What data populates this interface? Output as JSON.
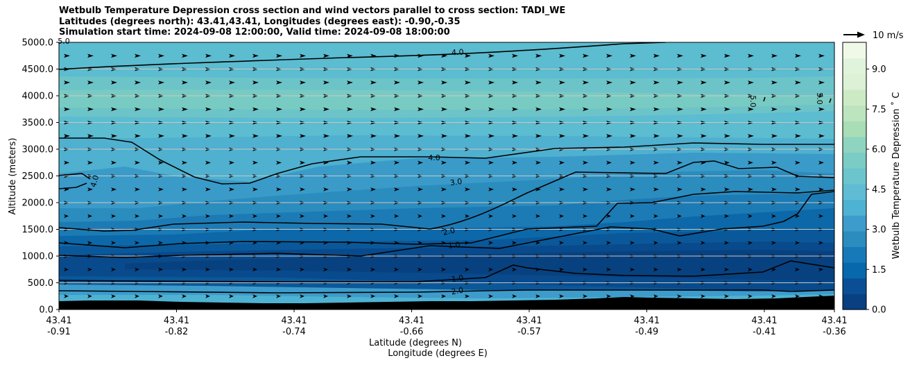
{
  "chart_data": {
    "type": "heatmap",
    "title": [
      "Wetbulb Temperature Depression cross section and wind vectors parallel to cross section: TADI_WE",
      "Latitudes (degrees north): 43.41,43.41, Longitudes (degrees east): -0.90,-0.35",
      "Simulation start time: 2024-09-08 12:00:00, Valid time: 2024-09-08 18:00:00"
    ],
    "ylabel": "Altitude (meters)",
    "xlabel_lat": "Latitude (degrees N)",
    "xlabel_lon": "Longitude (degrees E)",
    "ylim": [
      0,
      5000
    ],
    "y_ticks": [
      "0.0",
      "500.0",
      "1000.0",
      "1500.0",
      "2000.0",
      "2500.0",
      "3000.0",
      "3500.0",
      "4000.0",
      "4500.0",
      "5000.0"
    ],
    "x_ticks": [
      {
        "lat": "43.41",
        "lon": "-0.91"
      },
      {
        "lat": "43.41",
        "lon": "-0.82"
      },
      {
        "lat": "43.41",
        "lon": "-0.74"
      },
      {
        "lat": "43.41",
        "lon": "-0.66"
      },
      {
        "lat": "43.41",
        "lon": "-0.57"
      },
      {
        "lat": "43.41",
        "lon": "-0.49"
      },
      {
        "lat": "43.41",
        "lon": "-0.41"
      },
      {
        "lat": "43.41",
        "lon": "-0.36"
      }
    ],
    "colorbar": {
      "label": "Wetbulb Temperature Depression ˚ C",
      "range": [
        0,
        10
      ],
      "ticks": [
        "0.0",
        "1.5",
        "3.0",
        "4.5",
        "6.0",
        "7.5",
        "9.0"
      ],
      "colors": [
        "#084081",
        "#0a4f95",
        "#0868ac",
        "#1879b8",
        "#2b8cbe",
        "#3d9ccb",
        "#4eb3d3",
        "#5fbcd4",
        "#6cc4cc",
        "#7bccc4",
        "#8fd4c1",
        "#a8ddb5",
        "#bce5bf",
        "#ccebc5",
        "#dcf1d6",
        "#e0f3db",
        "#f0f9e8"
      ]
    },
    "wind_key": "10 m/s",
    "contour_labels": [
      "4.0",
      "4.0",
      "4.0",
      "3.0",
      "2.0",
      "1.0",
      "1.0",
      "2.0",
      "5.0",
      "5.0",
      "5.0"
    ]
  }
}
